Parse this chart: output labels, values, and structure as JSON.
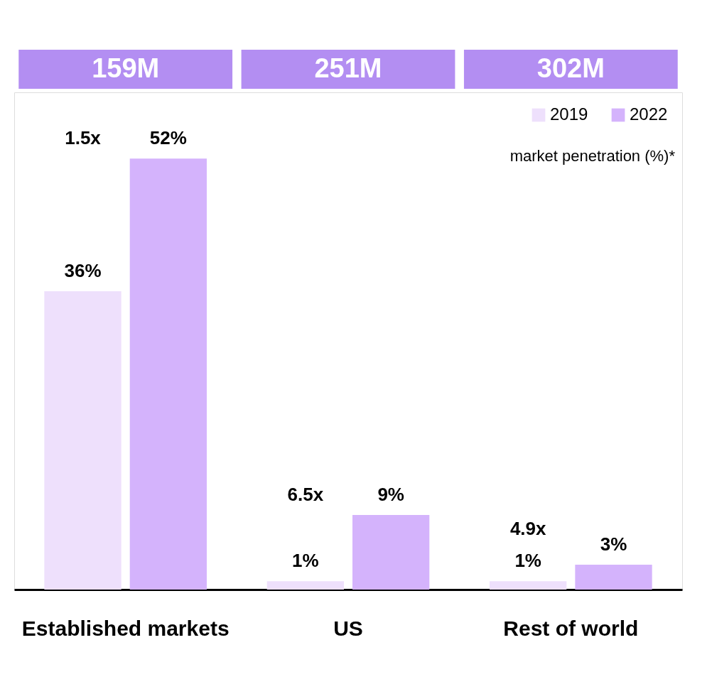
{
  "chart_data": {
    "type": "bar",
    "categories": [
      "Established markets",
      "US",
      "Rest of world"
    ],
    "series": [
      {
        "name": "2019",
        "color": "#eee0fc",
        "values": [
          36,
          1,
          1
        ],
        "value_labels": [
          "36%",
          "1%",
          "1%"
        ]
      },
      {
        "name": "2022",
        "color": "#d4b3fc",
        "values": [
          52,
          9,
          3
        ],
        "value_labels": [
          "52%",
          "9%",
          "3%"
        ]
      }
    ],
    "ylim": [
      0,
      60
    ],
    "legend": "top right",
    "grid": false,
    "annotations": [
      "159M",
      "251M",
      "302M",
      "1.5x",
      "6.5x",
      "4.9x",
      "market penetration (%)*"
    ]
  }
}
